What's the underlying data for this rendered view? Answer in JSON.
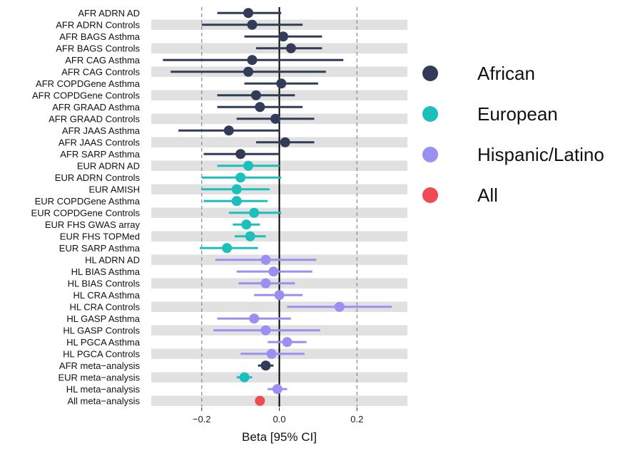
{
  "chart_data": {
    "type": "forest",
    "xlabel": "Beta [95% CI]",
    "xlim": [
      -0.33,
      0.33
    ],
    "xticks": [
      -0.2,
      0.0,
      0.2
    ],
    "xtick_labels": [
      "−0.2",
      "0.0",
      "0.2"
    ],
    "dashed_reference_lines": [
      -0.2,
      0.2
    ],
    "solid_reference_line": 0.0,
    "grid": "alternating grey row bands",
    "legend_position": "right",
    "colors": {
      "African": "#323c58",
      "European": "#1dbfbc",
      "Hispanic/Latino": "#9a90f2",
      "All": "#f04a52"
    },
    "legend": [
      {
        "label": "African",
        "group": "African"
      },
      {
        "label": "European",
        "group": "European"
      },
      {
        "label": "Hispanic/Latino",
        "group": "Hispanic/Latino"
      },
      {
        "label": "All",
        "group": "All"
      }
    ],
    "rows": [
      {
        "label": "AFR ADRN AD",
        "group": "African",
        "beta": -0.08,
        "lo": -0.16,
        "hi": 0.005
      },
      {
        "label": "AFR ADRN Controls",
        "group": "African",
        "beta": -0.07,
        "lo": -0.2,
        "hi": 0.06
      },
      {
        "label": "AFR BAGS Asthma",
        "group": "African",
        "beta": 0.01,
        "lo": -0.09,
        "hi": 0.11
      },
      {
        "label": "AFR BAGS Controls",
        "group": "African",
        "beta": 0.03,
        "lo": -0.06,
        "hi": 0.11
      },
      {
        "label": "AFR CAG Asthma",
        "group": "African",
        "beta": -0.07,
        "lo": -0.3,
        "hi": 0.165
      },
      {
        "label": "AFR CAG Controls",
        "group": "African",
        "beta": -0.08,
        "lo": -0.28,
        "hi": 0.12
      },
      {
        "label": "AFR COPDGene Asthma",
        "group": "African",
        "beta": 0.005,
        "lo": -0.09,
        "hi": 0.1
      },
      {
        "label": "AFR COPDGene Controls",
        "group": "African",
        "beta": -0.06,
        "lo": -0.16,
        "hi": 0.04
      },
      {
        "label": "AFR GRAAD Asthma",
        "group": "African",
        "beta": -0.05,
        "lo": -0.16,
        "hi": 0.06
      },
      {
        "label": "AFR GRAAD Controls",
        "group": "African",
        "beta": -0.01,
        "lo": -0.11,
        "hi": 0.09
      },
      {
        "label": "AFR JAAS Asthma",
        "group": "African",
        "beta": -0.13,
        "lo": -0.26,
        "hi": 0.0
      },
      {
        "label": "AFR JAAS Controls",
        "group": "African",
        "beta": 0.015,
        "lo": -0.06,
        "hi": 0.09
      },
      {
        "label": "AFR SARP Asthma",
        "group": "African",
        "beta": -0.1,
        "lo": -0.195,
        "hi": 0.0
      },
      {
        "label": "EUR ADRN AD",
        "group": "European",
        "beta": -0.08,
        "lo": -0.16,
        "hi": 0.0
      },
      {
        "label": "EUR ADRN Controls",
        "group": "European",
        "beta": -0.1,
        "lo": -0.2,
        "hi": 0.005
      },
      {
        "label": "EUR AMISH",
        "group": "European",
        "beta": -0.11,
        "lo": -0.2,
        "hi": -0.025
      },
      {
        "label": "EUR COPDGene Asthma",
        "group": "European",
        "beta": -0.11,
        "lo": -0.195,
        "hi": -0.03
      },
      {
        "label": "EUR COPDGene Controls",
        "group": "European",
        "beta": -0.065,
        "lo": -0.13,
        "hi": 0.005
      },
      {
        "label": "EUR FHS GWAS array",
        "group": "European",
        "beta": -0.085,
        "lo": -0.12,
        "hi": -0.05
      },
      {
        "label": "EUR FHS TOPMed",
        "group": "European",
        "beta": -0.075,
        "lo": -0.115,
        "hi": -0.035
      },
      {
        "label": "EUR SARP Asthma",
        "group": "European",
        "beta": -0.135,
        "lo": -0.205,
        "hi": -0.055
      },
      {
        "label": "HL ADRN AD",
        "group": "Hispanic/Latino",
        "beta": -0.035,
        "lo": -0.165,
        "hi": 0.095
      },
      {
        "label": "HL BIAS Asthma",
        "group": "Hispanic/Latino",
        "beta": -0.015,
        "lo": -0.11,
        "hi": 0.085
      },
      {
        "label": "HL BIAS Controls",
        "group": "Hispanic/Latino",
        "beta": -0.035,
        "lo": -0.105,
        "hi": 0.04
      },
      {
        "label": "HL CRA Asthma",
        "group": "Hispanic/Latino",
        "beta": 0.0,
        "lo": -0.065,
        "hi": 0.06
      },
      {
        "label": "HL CRA Controls",
        "group": "Hispanic/Latino",
        "beta": 0.155,
        "lo": 0.02,
        "hi": 0.29
      },
      {
        "label": "HL GASP Asthma",
        "group": "Hispanic/Latino",
        "beta": -0.065,
        "lo": -0.16,
        "hi": 0.03
      },
      {
        "label": "HL GASP Controls",
        "group": "Hispanic/Latino",
        "beta": -0.035,
        "lo": -0.17,
        "hi": 0.105
      },
      {
        "label": "HL PGCA Asthma",
        "group": "Hispanic/Latino",
        "beta": 0.02,
        "lo": -0.03,
        "hi": 0.07
      },
      {
        "label": "HL PGCA Controls",
        "group": "Hispanic/Latino",
        "beta": -0.02,
        "lo": -0.1,
        "hi": 0.065
      },
      {
        "label": "AFR meta−analysis",
        "group": "African",
        "beta": -0.035,
        "lo": -0.055,
        "hi": -0.015
      },
      {
        "label": "EUR meta−analysis",
        "group": "European",
        "beta": -0.09,
        "lo": -0.11,
        "hi": -0.07
      },
      {
        "label": "HL meta−analysis",
        "group": "Hispanic/Latino",
        "beta": -0.005,
        "lo": -0.03,
        "hi": 0.02
      },
      {
        "label": "All meta−analysis",
        "group": "All",
        "beta": -0.05,
        "lo": -0.06,
        "hi": -0.04
      }
    ]
  }
}
